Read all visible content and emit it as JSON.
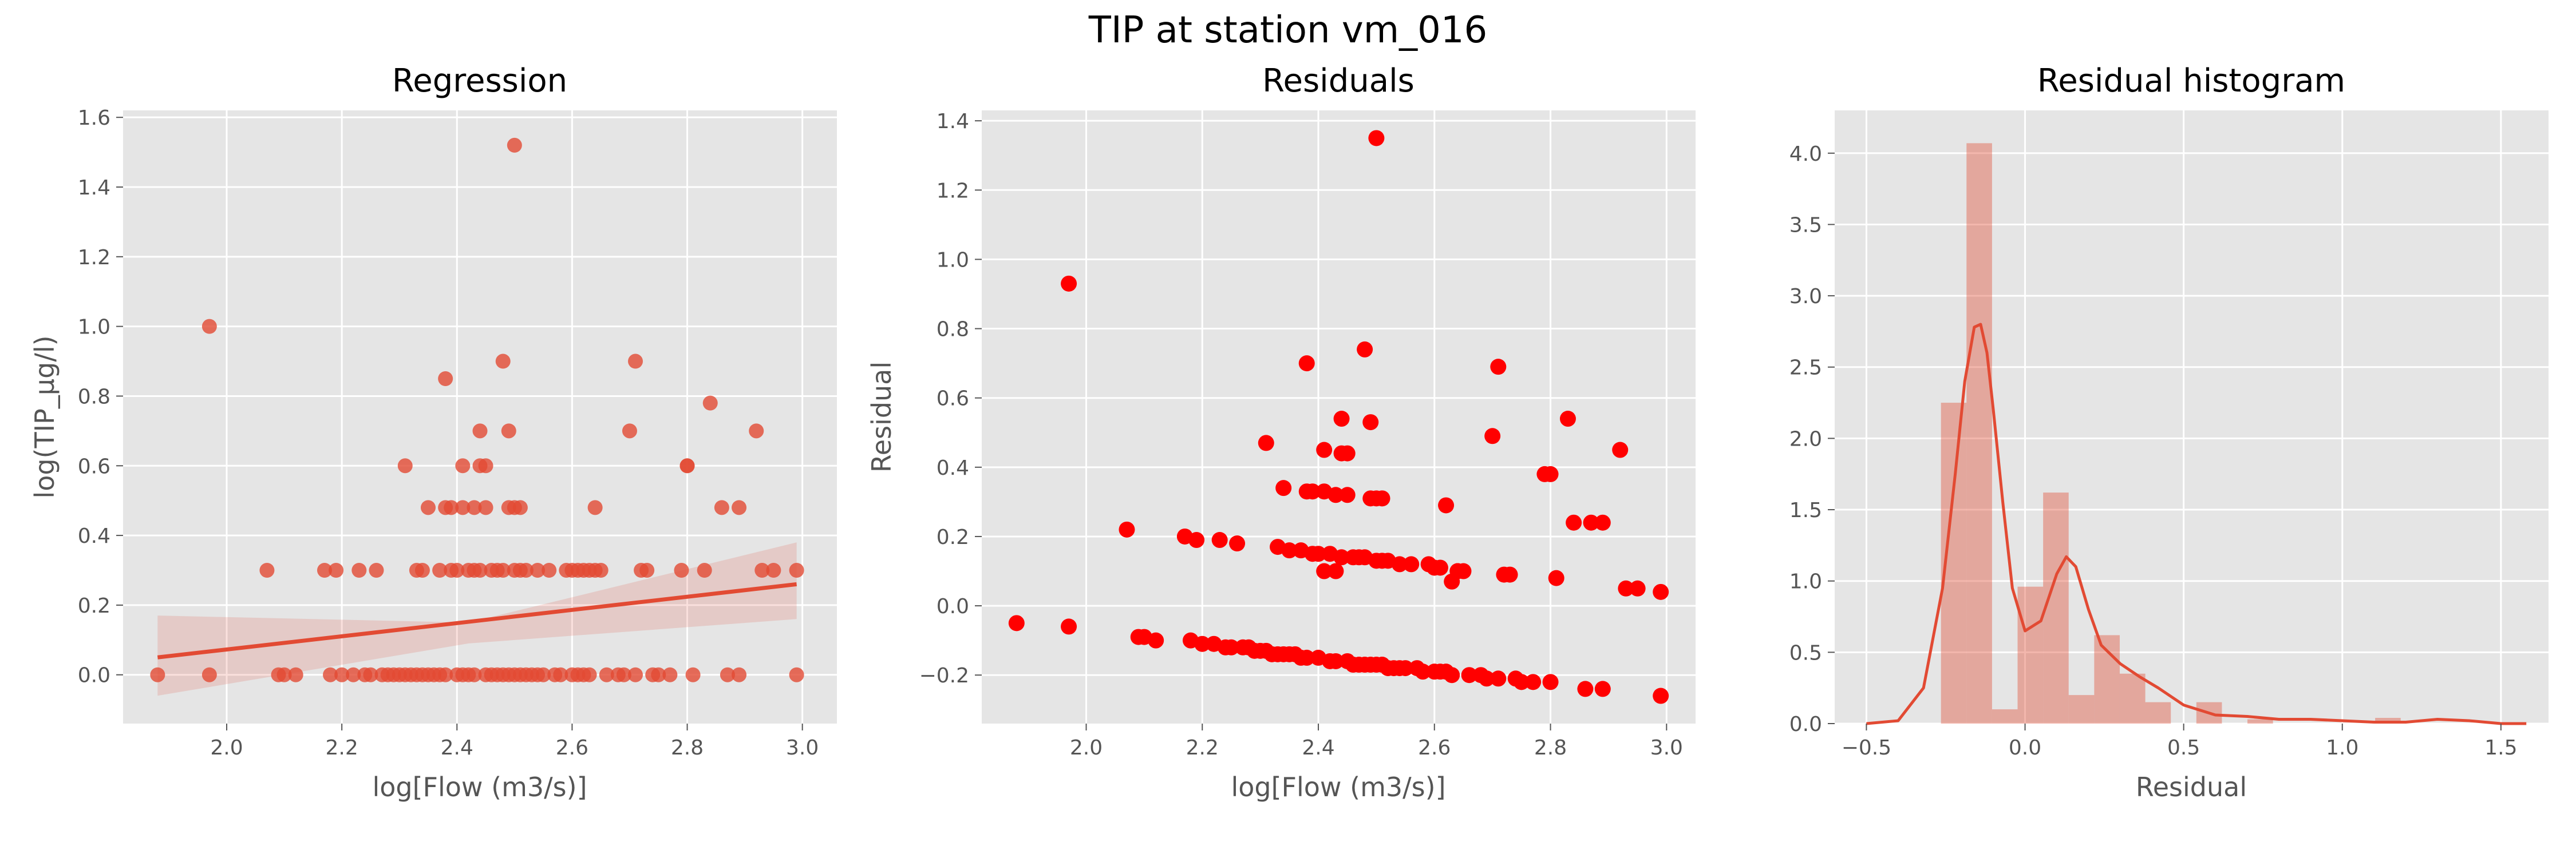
{
  "figure": {
    "suptitle": "TIP at station vm_016"
  },
  "colors": {
    "panel_bg": "#e5e5e5",
    "grid": "#ffffff",
    "regression": "#e24a33",
    "residual_points": "#ff0000",
    "histogram": "#e24a33"
  },
  "chart_data": [
    {
      "type": "scatter",
      "title": "Regression",
      "xlabel": "log[Flow (m3/s)]",
      "ylabel": "log(TIP_µg/l)",
      "xlim": [
        1.82,
        3.06
      ],
      "ylim": [
        -0.14,
        1.62
      ],
      "xticks": [
        "2.0",
        "2.2",
        "2.4",
        "2.6",
        "2.8",
        "3.0"
      ],
      "yticks": [
        "0.0",
        "0.2",
        "0.4",
        "0.6",
        "0.8",
        "1.0",
        "1.2",
        "1.4",
        "1.6"
      ],
      "points": [
        [
          1.88,
          0
        ],
        [
          1.97,
          0
        ],
        [
          1.97,
          1.0
        ],
        [
          2.07,
          0.3
        ],
        [
          2.09,
          0
        ],
        [
          2.1,
          0
        ],
        [
          2.12,
          0
        ],
        [
          2.17,
          0.3
        ],
        [
          2.18,
          0
        ],
        [
          2.19,
          0.3
        ],
        [
          2.2,
          0
        ],
        [
          2.22,
          0
        ],
        [
          2.23,
          0.3
        ],
        [
          2.24,
          0
        ],
        [
          2.25,
          0
        ],
        [
          2.26,
          0.3
        ],
        [
          2.27,
          0
        ],
        [
          2.28,
          0
        ],
        [
          2.29,
          0
        ],
        [
          2.3,
          0
        ],
        [
          2.31,
          0.6
        ],
        [
          2.31,
          0
        ],
        [
          2.32,
          0
        ],
        [
          2.33,
          0.3
        ],
        [
          2.33,
          0
        ],
        [
          2.34,
          0
        ],
        [
          2.34,
          0.3
        ],
        [
          2.35,
          0.48
        ],
        [
          2.35,
          0
        ],
        [
          2.36,
          0
        ],
        [
          2.37,
          0
        ],
        [
          2.37,
          0.3
        ],
        [
          2.38,
          0.48
        ],
        [
          2.38,
          0.85
        ],
        [
          2.38,
          0
        ],
        [
          2.39,
          0.3
        ],
        [
          2.39,
          0.48
        ],
        [
          2.4,
          0
        ],
        [
          2.4,
          0.3
        ],
        [
          2.41,
          0.6
        ],
        [
          2.41,
          0
        ],
        [
          2.41,
          0.48
        ],
        [
          2.42,
          0.3
        ],
        [
          2.42,
          0
        ],
        [
          2.43,
          0.48
        ],
        [
          2.43,
          0.3
        ],
        [
          2.43,
          0
        ],
        [
          2.44,
          0.7
        ],
        [
          2.44,
          0.6
        ],
        [
          2.44,
          0.3
        ],
        [
          2.45,
          0
        ],
        [
          2.45,
          0.48
        ],
        [
          2.45,
          0.6
        ],
        [
          2.46,
          0.3
        ],
        [
          2.46,
          0
        ],
        [
          2.47,
          0.3
        ],
        [
          2.47,
          0
        ],
        [
          2.48,
          0.9
        ],
        [
          2.48,
          0.3
        ],
        [
          2.48,
          0
        ],
        [
          2.49,
          0.48
        ],
        [
          2.49,
          0.7
        ],
        [
          2.49,
          0
        ],
        [
          2.5,
          1.52
        ],
        [
          2.5,
          0.3
        ],
        [
          2.5,
          0.48
        ],
        [
          2.5,
          0
        ],
        [
          2.51,
          0.3
        ],
        [
          2.51,
          0
        ],
        [
          2.51,
          0.48
        ],
        [
          2.52,
          0.3
        ],
        [
          2.52,
          0
        ],
        [
          2.53,
          0
        ],
        [
          2.54,
          0.3
        ],
        [
          2.54,
          0
        ],
        [
          2.55,
          0
        ],
        [
          2.56,
          0.3
        ],
        [
          2.57,
          0
        ],
        [
          2.58,
          0
        ],
        [
          2.59,
          0.3
        ],
        [
          2.6,
          0
        ],
        [
          2.6,
          0.3
        ],
        [
          2.61,
          0
        ],
        [
          2.61,
          0.3
        ],
        [
          2.62,
          0
        ],
        [
          2.62,
          0.3
        ],
        [
          2.63,
          0
        ],
        [
          2.63,
          0.3
        ],
        [
          2.64,
          0.48
        ],
        [
          2.64,
          0.3
        ],
        [
          2.65,
          0.3
        ],
        [
          2.66,
          0
        ],
        [
          2.68,
          0
        ],
        [
          2.69,
          0
        ],
        [
          2.7,
          0.7
        ],
        [
          2.71,
          0.9
        ],
        [
          2.71,
          0
        ],
        [
          2.72,
          0.3
        ],
        [
          2.73,
          0.3
        ],
        [
          2.74,
          0
        ],
        [
          2.75,
          0
        ],
        [
          2.77,
          0
        ],
        [
          2.79,
          0.3
        ],
        [
          2.8,
          0.6
        ],
        [
          2.8,
          0.6
        ],
        [
          2.81,
          0
        ],
        [
          2.83,
          0.3
        ],
        [
          2.84,
          0.78
        ],
        [
          2.86,
          0.48
        ],
        [
          2.87,
          0
        ],
        [
          2.89,
          0.48
        ],
        [
          2.89,
          0
        ],
        [
          2.92,
          0.7
        ],
        [
          2.93,
          0.3
        ],
        [
          2.95,
          0.3
        ],
        [
          2.99,
          0.3
        ],
        [
          2.99,
          0
        ]
      ],
      "fit_line": {
        "x": [
          1.88,
          2.99
        ],
        "y": [
          0.05,
          0.26
        ]
      },
      "confidence_band": {
        "x": [
          1.88,
          2.42,
          2.99
        ],
        "lower": [
          -0.06,
          0.09,
          0.16
        ],
        "upper": [
          0.17,
          0.15,
          0.38
        ]
      }
    },
    {
      "type": "scatter",
      "title": "Residuals",
      "xlabel": "log[Flow (m3/s)]",
      "ylabel": "Residual",
      "xlim": [
        1.82,
        3.05
      ],
      "ylim": [
        -0.34,
        1.43
      ],
      "xticks": [
        "2.0",
        "2.2",
        "2.4",
        "2.6",
        "2.8",
        "3.0"
      ],
      "yticks": [
        "−0.2",
        "0.0",
        "0.2",
        "0.4",
        "0.6",
        "0.8",
        "1.0",
        "1.2",
        "1.4"
      ],
      "points": [
        [
          1.88,
          -0.05
        ],
        [
          1.97,
          -0.06
        ],
        [
          1.97,
          0.93
        ],
        [
          2.07,
          0.22
        ],
        [
          2.09,
          -0.09
        ],
        [
          2.1,
          -0.09
        ],
        [
          2.12,
          -0.1
        ],
        [
          2.17,
          0.2
        ],
        [
          2.18,
          -0.1
        ],
        [
          2.19,
          0.19
        ],
        [
          2.2,
          -0.11
        ],
        [
          2.22,
          -0.11
        ],
        [
          2.23,
          0.19
        ],
        [
          2.24,
          -0.12
        ],
        [
          2.25,
          -0.12
        ],
        [
          2.26,
          0.18
        ],
        [
          2.27,
          -0.12
        ],
        [
          2.28,
          -0.12
        ],
        [
          2.29,
          -0.13
        ],
        [
          2.3,
          -0.13
        ],
        [
          2.31,
          0.47
        ],
        [
          2.31,
          -0.13
        ],
        [
          2.32,
          -0.14
        ],
        [
          2.33,
          0.17
        ],
        [
          2.33,
          -0.14
        ],
        [
          2.34,
          -0.14
        ],
        [
          2.34,
          0.34
        ],
        [
          2.35,
          0.16
        ],
        [
          2.35,
          -0.14
        ],
        [
          2.36,
          -0.14
        ],
        [
          2.37,
          -0.15
        ],
        [
          2.37,
          0.16
        ],
        [
          2.38,
          0.33
        ],
        [
          2.38,
          0.7
        ],
        [
          2.38,
          -0.15
        ],
        [
          2.39,
          0.33
        ],
        [
          2.39,
          0.15
        ],
        [
          2.4,
          -0.15
        ],
        [
          2.4,
          0.15
        ],
        [
          2.41,
          0.45
        ],
        [
          2.41,
          0.1
        ],
        [
          2.41,
          0.33
        ],
        [
          2.42,
          0.15
        ],
        [
          2.42,
          -0.16
        ],
        [
          2.43,
          0.32
        ],
        [
          2.43,
          0.1
        ],
        [
          2.43,
          -0.16
        ],
        [
          2.44,
          0.54
        ],
        [
          2.44,
          0.44
        ],
        [
          2.44,
          0.14
        ],
        [
          2.45,
          -0.16
        ],
        [
          2.45,
          0.32
        ],
        [
          2.45,
          0.44
        ],
        [
          2.46,
          0.14
        ],
        [
          2.46,
          -0.17
        ],
        [
          2.47,
          0.14
        ],
        [
          2.47,
          -0.17
        ],
        [
          2.48,
          0.74
        ],
        [
          2.48,
          0.14
        ],
        [
          2.48,
          -0.17
        ],
        [
          2.49,
          0.31
        ],
        [
          2.49,
          0.53
        ],
        [
          2.49,
          -0.17
        ],
        [
          2.5,
          1.35
        ],
        [
          2.5,
          0.13
        ],
        [
          2.5,
          0.31
        ],
        [
          2.5,
          -0.17
        ],
        [
          2.51,
          0.13
        ],
        [
          2.51,
          -0.17
        ],
        [
          2.51,
          0.31
        ],
        [
          2.52,
          0.13
        ],
        [
          2.52,
          -0.18
        ],
        [
          2.53,
          -0.18
        ],
        [
          2.54,
          0.12
        ],
        [
          2.54,
          -0.18
        ],
        [
          2.55,
          -0.18
        ],
        [
          2.56,
          0.12
        ],
        [
          2.57,
          -0.18
        ],
        [
          2.58,
          -0.19
        ],
        [
          2.59,
          0.12
        ],
        [
          2.6,
          -0.19
        ],
        [
          2.6,
          0.11
        ],
        [
          2.61,
          -0.19
        ],
        [
          2.61,
          0.11
        ],
        [
          2.62,
          -0.19
        ],
        [
          2.62,
          0.29
        ],
        [
          2.63,
          -0.2
        ],
        [
          2.63,
          0.07
        ],
        [
          2.64,
          0.1
        ],
        [
          2.64,
          0.1
        ],
        [
          2.65,
          0.1
        ],
        [
          2.66,
          -0.2
        ],
        [
          2.68,
          -0.2
        ],
        [
          2.69,
          -0.21
        ],
        [
          2.7,
          0.49
        ],
        [
          2.71,
          0.69
        ],
        [
          2.71,
          -0.21
        ],
        [
          2.72,
          0.09
        ],
        [
          2.73,
          0.09
        ],
        [
          2.74,
          -0.21
        ],
        [
          2.75,
          -0.22
        ],
        [
          2.77,
          -0.22
        ],
        [
          2.79,
          0.38
        ],
        [
          2.8,
          0.38
        ],
        [
          2.8,
          -0.22
        ],
        [
          2.81,
          0.08
        ],
        [
          2.83,
          0.54
        ],
        [
          2.84,
          0.24
        ],
        [
          2.86,
          -0.24
        ],
        [
          2.87,
          0.24
        ],
        [
          2.89,
          -0.24
        ],
        [
          2.89,
          0.24
        ],
        [
          2.92,
          0.45
        ],
        [
          2.93,
          0.05
        ],
        [
          2.95,
          0.05
        ],
        [
          2.99,
          0.04
        ],
        [
          2.99,
          -0.26
        ]
      ]
    },
    {
      "type": "histogram",
      "title": "Residual histogram",
      "xlabel": "Residual",
      "ylabel": "",
      "xlim": [
        -0.6,
        1.65
      ],
      "ylim": [
        0,
        4.3
      ],
      "xticks": [
        "−0.5",
        "0.0",
        "0.5",
        "1.0",
        "1.5"
      ],
      "yticks": [
        "0.0",
        "0.5",
        "1.0",
        "1.5",
        "2.0",
        "2.5",
        "3.0",
        "3.5",
        "4.0"
      ],
      "bin_start": -0.265,
      "bin_width": 0.0805,
      "values": [
        2.25,
        4.07,
        0.1,
        0.96,
        1.62,
        0.2,
        0.62,
        0.35,
        0.15,
        0,
        0.15,
        0,
        0.03,
        0,
        0,
        0,
        0,
        0.04,
        0,
        0
      ],
      "kde": {
        "x": [
          -0.5,
          -0.4,
          -0.32,
          -0.26,
          -0.22,
          -0.19,
          -0.16,
          -0.14,
          -0.12,
          -0.1,
          -0.07,
          -0.04,
          0.0,
          0.05,
          0.1,
          0.13,
          0.16,
          0.2,
          0.24,
          0.3,
          0.36,
          0.42,
          0.5,
          0.6,
          0.7,
          0.8,
          0.9,
          1.0,
          1.1,
          1.2,
          1.3,
          1.4,
          1.5,
          1.58
        ],
        "y": [
          0.0,
          0.02,
          0.25,
          0.95,
          1.75,
          2.4,
          2.78,
          2.8,
          2.6,
          2.2,
          1.55,
          0.95,
          0.65,
          0.72,
          1.05,
          1.17,
          1.1,
          0.8,
          0.55,
          0.42,
          0.33,
          0.25,
          0.13,
          0.06,
          0.05,
          0.03,
          0.03,
          0.02,
          0.01,
          0.01,
          0.03,
          0.02,
          0.0,
          0.0
        ]
      }
    }
  ]
}
